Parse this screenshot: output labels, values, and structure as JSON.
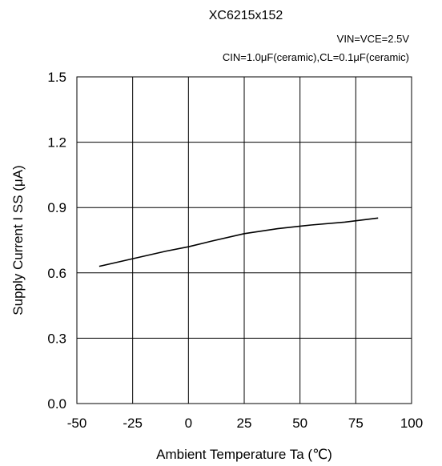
{
  "chart_data": {
    "type": "line",
    "title": "XC6215x152",
    "annotations": [
      "VIN=VCE=2.5V",
      "CIN=1.0μF(ceramic),CL=0.1μF(ceramic)"
    ],
    "xlabel": "Ambient Temperature Ta (℃)",
    "ylabel": "Supply Current  I SS (μA)",
    "xlim": [
      -50,
      100
    ],
    "ylim": [
      0.0,
      1.5
    ],
    "xticks": [
      "-50",
      "-25",
      "0",
      "25",
      "50",
      "75",
      "100"
    ],
    "yticks": [
      "0.0",
      "0.3",
      "0.6",
      "0.9",
      "1.2",
      "1.5"
    ],
    "grid": true,
    "series": [
      {
        "x": [
          -40,
          -25,
          -10,
          0,
          10,
          25,
          40,
          55,
          70,
          85
        ],
        "y": [
          0.63,
          0.665,
          0.7,
          0.72,
          0.745,
          0.78,
          0.803,
          0.82,
          0.833,
          0.852
        ]
      }
    ]
  },
  "colors": {
    "line": "#000000",
    "grid": "#000000",
    "background": "#ffffff"
  }
}
